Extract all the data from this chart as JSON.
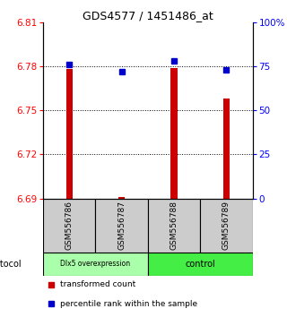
{
  "title": "GDS4577 / 1451486_at",
  "samples": [
    "GSM556786",
    "GSM556787",
    "GSM556788",
    "GSM556789"
  ],
  "bar_values": [
    6.778,
    6.691,
    6.779,
    6.758
  ],
  "percentile_values": [
    76,
    72,
    78,
    73
  ],
  "y_min": 6.69,
  "y_max": 6.81,
  "y_ticks": [
    6.69,
    6.72,
    6.75,
    6.78,
    6.81
  ],
  "y_right_ticks": [
    0,
    25,
    50,
    75,
    100
  ],
  "y_right_labels": [
    "0",
    "25",
    "50",
    "75",
    "100%"
  ],
  "bar_color": "#cc0000",
  "percentile_color": "#0000cc",
  "groups": [
    {
      "label": "Dlx5 overexpression",
      "color": "#aaffaa",
      "n_samples": 2
    },
    {
      "label": "control",
      "color": "#44ee44",
      "n_samples": 2
    }
  ],
  "protocol_label": "protocol",
  "legend_items": [
    {
      "color": "#cc0000",
      "label": "transformed count"
    },
    {
      "color": "#0000cc",
      "label": "percentile rank within the sample"
    }
  ],
  "sample_box_color": "#cccccc",
  "bar_width": 0.12,
  "title_fontsize": 9,
  "tick_fontsize": 7.5,
  "sample_fontsize": 6.5
}
